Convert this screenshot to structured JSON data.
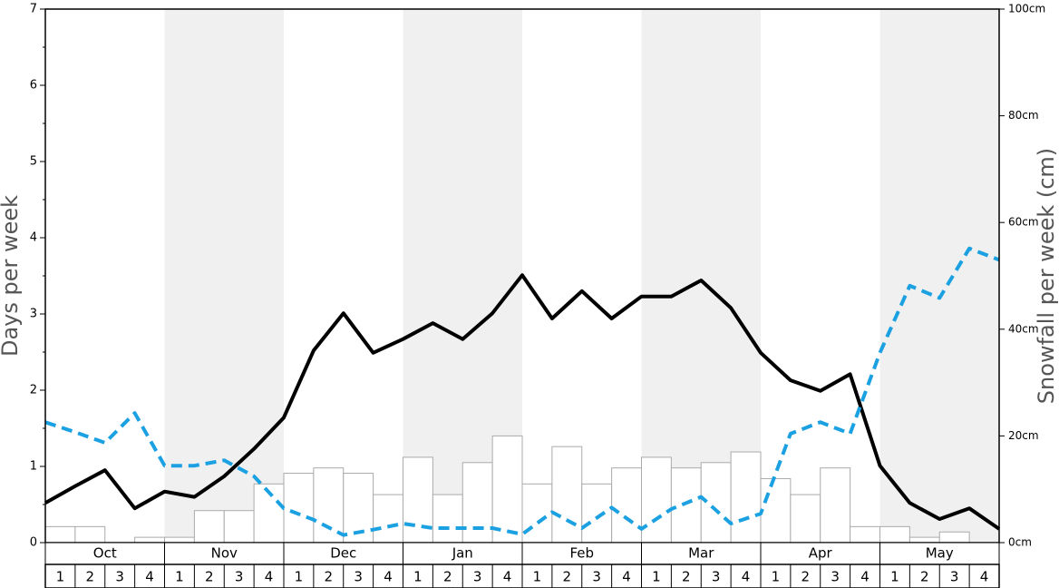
{
  "chart_data": {
    "type": "bar-line",
    "ylabel": "Days per week",
    "y2label": "Snowfall per week (cm)",
    "months": [
      "Oct",
      "Nov",
      "Dec",
      "Jan",
      "Feb",
      "Mar",
      "Apr",
      "May"
    ],
    "weeks": [
      "1",
      "2",
      "3",
      "4"
    ],
    "ylim": [
      0,
      7
    ],
    "yticks": [
      0,
      1,
      2,
      3,
      4,
      5,
      6,
      7
    ],
    "y2lim": [
      0,
      100
    ],
    "y2ticks": [
      {
        "value": 0,
        "label": "0cm"
      },
      {
        "value": 20,
        "label": "20cm"
      },
      {
        "value": 40,
        "label": "40cm"
      },
      {
        "value": 60,
        "label": "60cm"
      },
      {
        "value": 80,
        "label": "80cm"
      },
      {
        "value": 100,
        "label": "100cm"
      }
    ],
    "bars": {
      "axis": "y2",
      "color": "#ffffff",
      "edge": "#aaaaaa",
      "values": [
        3,
        3,
        0,
        1,
        1,
        6,
        6,
        11,
        13,
        14,
        13,
        9,
        16,
        9,
        15,
        20,
        11,
        18,
        11,
        14,
        16,
        14,
        15,
        17,
        12,
        9,
        14,
        3,
        3,
        1,
        2,
        0
      ]
    },
    "series": [
      {
        "color": "#000000",
        "dash": false,
        "values": [
          0.52,
          0.74,
          0.95,
          0.45,
          0.67,
          0.6,
          0.87,
          1.23,
          1.64,
          2.52,
          3.01,
          2.49,
          2.67,
          2.88,
          2.67,
          3.01,
          3.51,
          2.94,
          3.3,
          2.94,
          3.23,
          3.23,
          3.44,
          3.08,
          2.49,
          2.13,
          1.99,
          2.21,
          1.01,
          0.52,
          0.31,
          0.45,
          0.18
        ]
      },
      {
        "color": "#1ba1e2",
        "dash": true,
        "values": [
          1.58,
          1.45,
          1.31,
          1.7,
          1.01,
          1.01,
          1.08,
          0.87,
          0.45,
          0.3,
          0.1,
          0.17,
          0.25,
          0.19,
          0.19,
          0.19,
          0.11,
          0.4,
          0.19,
          0.46,
          0.18,
          0.44,
          0.6,
          0.25,
          0.38,
          1.43,
          1.58,
          1.43,
          2.49,
          3.37,
          3.21,
          3.86,
          3.71
        ]
      }
    ]
  }
}
